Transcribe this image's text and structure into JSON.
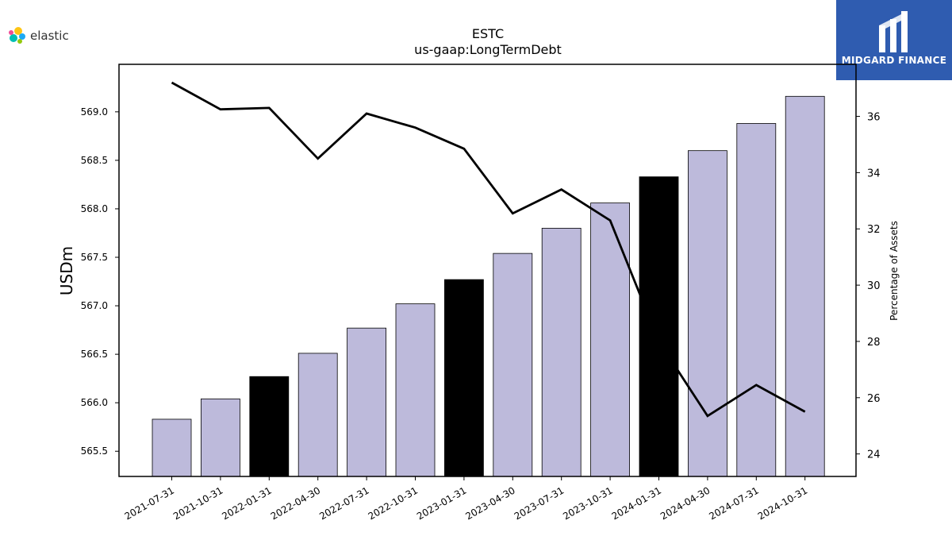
{
  "brand_left": {
    "name": "elastic",
    "icon": "elastic-logo-icon"
  },
  "brand_right": {
    "name": "MIDGARD FINANCE",
    "icon": "midgard-logo-icon",
    "color": "#2f5cb0"
  },
  "chart_data": {
    "type": "bar",
    "title": "ESTC",
    "subtitle": "us-gaap:LongTermDebt",
    "ylabel": "USDm",
    "y2label": "Percentage of Assets",
    "categories": [
      "2021-07-31",
      "2021-10-31",
      "2022-01-31",
      "2022-04-30",
      "2022-07-31",
      "2022-10-31",
      "2023-01-31",
      "2023-04-30",
      "2023-07-31",
      "2023-10-31",
      "2024-01-31",
      "2024-04-30",
      "2024-07-31",
      "2024-10-31"
    ],
    "series": [
      {
        "kind": "bar",
        "axis": "left",
        "values": [
          565.83,
          566.04,
          566.27,
          566.51,
          566.77,
          567.02,
          567.27,
          567.54,
          567.8,
          568.06,
          568.33,
          568.6,
          568.88,
          569.16
        ],
        "colors": [
          "#bdbadb",
          "#bdbadb",
          "#000000",
          "#bdbadb",
          "#bdbadb",
          "#bdbadb",
          "#000000",
          "#bdbadb",
          "#bdbadb",
          "#bdbadb",
          "#000000",
          "#bdbadb",
          "#bdbadb",
          "#bdbadb"
        ]
      },
      {
        "kind": "line",
        "axis": "right",
        "color": "#000000",
        "values": [
          37.2,
          36.25,
          36.3,
          34.5,
          36.1,
          35.6,
          34.85,
          32.55,
          33.4,
          32.3,
          28.0,
          25.35,
          26.45,
          25.5
        ]
      }
    ],
    "ylim": [
      565.24,
      569.49
    ],
    "yticks": [
      "565.5",
      "566.0",
      "566.5",
      "567.0",
      "567.5",
      "568.0",
      "568.5",
      "569.0"
    ],
    "y2lim": [
      23.2,
      37.85
    ],
    "y2ticks": [
      "24",
      "26",
      "28",
      "30",
      "32",
      "34",
      "36"
    ],
    "grid": false,
    "legend": "none"
  }
}
